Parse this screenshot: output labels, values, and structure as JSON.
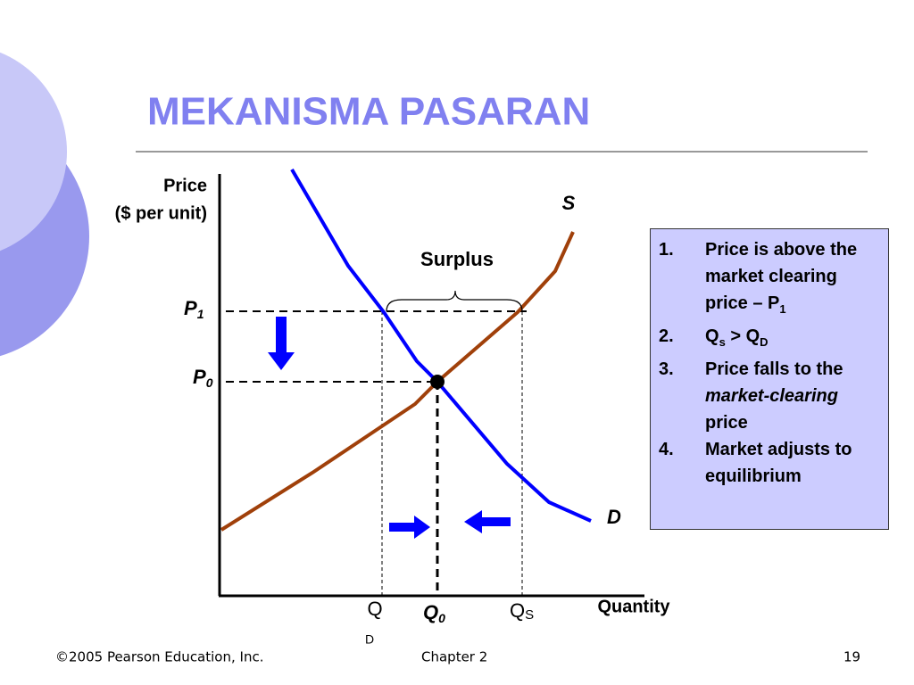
{
  "title": "MEKANISMA PASARAN",
  "diagram": {
    "y_axis_label": [
      "Price",
      "($ per unit)"
    ],
    "x_axis_label": "Quantity",
    "supply_label": "S",
    "demand_label": "D",
    "surplus_label": "Surplus",
    "price_labels": [
      {
        "text": "P",
        "sub": "1"
      },
      {
        "text": "P",
        "sub": "0"
      }
    ],
    "quantity_labels": [
      {
        "text": "Q",
        "sub": "D"
      },
      {
        "text": "Q",
        "sub": "0"
      },
      {
        "text": "Q",
        "sub": "S"
      }
    ]
  },
  "notes": [
    {
      "number": "1.",
      "parts": [
        {
          "text": "Price is above the market clearing price – P"
        },
        {
          "sub": "1"
        }
      ]
    },
    {
      "number": "2.",
      "parts": [
        {
          "text": "Q"
        },
        {
          "sub": "s"
        },
        {
          "text": "  > Q"
        },
        {
          "sub": "D"
        }
      ]
    },
    {
      "number": "3.",
      "parts": [
        {
          "text": "Price falls to the "
        },
        {
          "italic": "market-clearing"
        },
        {
          "text": " price"
        }
      ]
    },
    {
      "number": "4.",
      "parts": [
        {
          "text": "Market adjusts to equilibrium"
        }
      ]
    }
  ],
  "footer": {
    "copyright": "©2005 Pearson Education, Inc.",
    "chapter": "Chapter 2",
    "page": "19"
  }
}
